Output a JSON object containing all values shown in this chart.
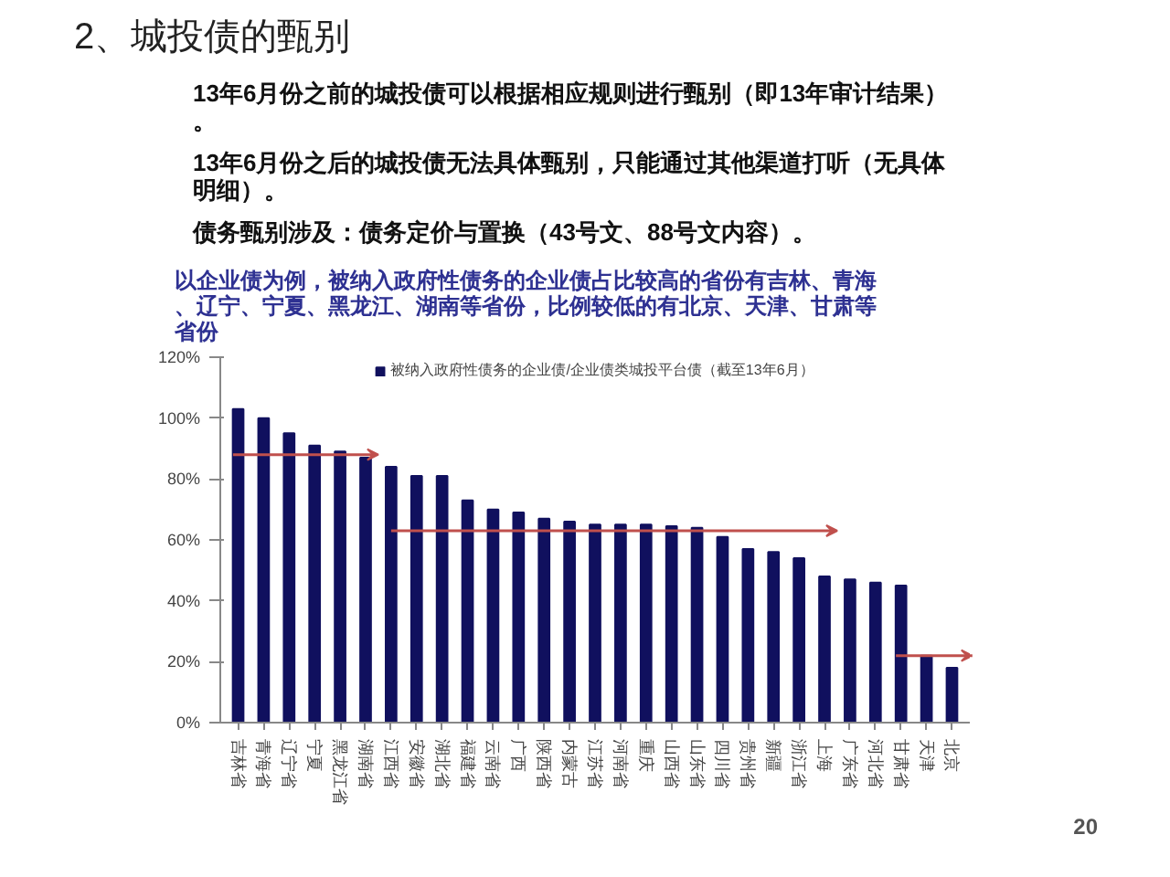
{
  "chart_data": {
    "type": "bar",
    "title": "2、城投债的甄别",
    "subtitle": "以企业债为例，被纳入政府性债务的企业债占比较高的省份有吉林、青海、辽宁、宁夏、黑龙江、湖南等省份，比例较低的有北京、天津、甘肃等省份",
    "annotations": [
      "13年6月份之前的城投债可以根据相应规则进行甄别（即13年审计结果）。",
      "13年6月份之后的城投债无法具体甄别，只能通过其他渠道打听（无具体明细）。",
      "债务甄别涉及：债务定价与置换（43号文、88号文内容）。",
      "20"
    ],
    "categories": [
      "吉林省",
      "青海省",
      "辽宁省",
      "宁夏",
      "黑龙江省",
      "湖南省",
      "江西省",
      "安徽省",
      "湖北省",
      "福建省",
      "云南省",
      "广西",
      "陕西省",
      "内蒙古",
      "江苏省",
      "河南省",
      "重庆",
      "山西省",
      "山东省",
      "四川省",
      "贵州省",
      "新疆",
      "浙江省",
      "上海",
      "广东省",
      "河北省",
      "甘肃省",
      "天津",
      "北京"
    ],
    "series": [
      {
        "name": "被纳入政府性债务的企业债/企业债类城投平台债（截至13年6月）",
        "color": "#10105e",
        "values": [
          103,
          100,
          95,
          91,
          89,
          87,
          84,
          81,
          81,
          73,
          70,
          69,
          67,
          66,
          65,
          65,
          65,
          64.5,
          64,
          61,
          57,
          56,
          54,
          48,
          47,
          46,
          45,
          22,
          18
        ]
      }
    ],
    "ylim": [
      0,
      120
    ],
    "yticks": [
      {
        "value": 0,
        "label": "0%"
      },
      {
        "value": 20,
        "label": "20%"
      },
      {
        "value": 40,
        "label": "40%"
      },
      {
        "value": 60,
        "label": "60%"
      },
      {
        "value": 80,
        "label": "80%"
      },
      {
        "value": 100,
        "label": "100%"
      },
      {
        "value": 120,
        "label": "120%"
      }
    ],
    "grid": false,
    "legend": "top"
  }
}
